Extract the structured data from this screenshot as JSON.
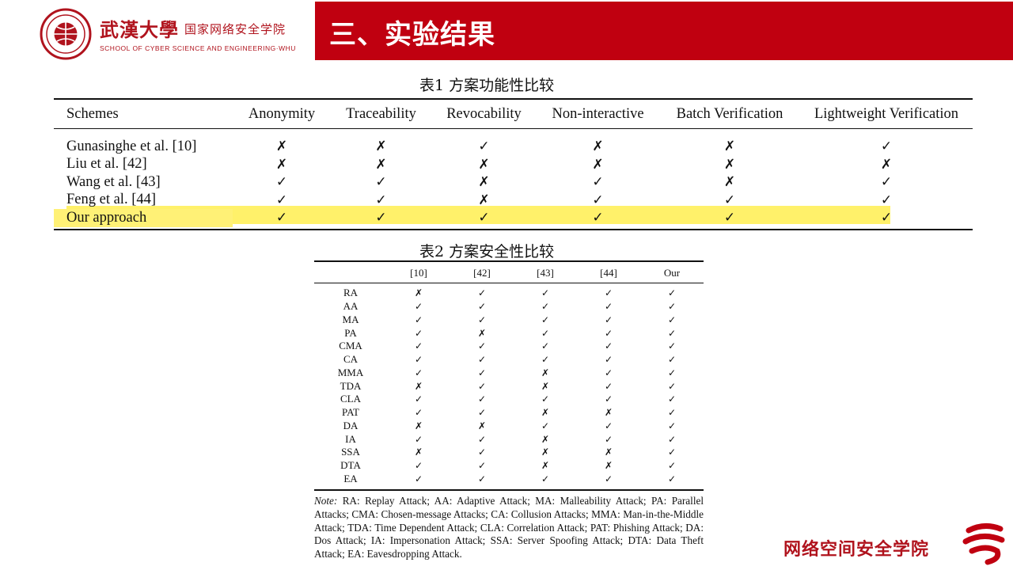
{
  "header": {
    "university_cn": "武漢大學",
    "school_cn": "国家网络安全学院",
    "school_en": "SCHOOL OF CYBER SCIENCE AND ENGINEERING·WHU",
    "section_title": "三、实验结果",
    "brand_color": "#c00010"
  },
  "table1": {
    "caption": "表1  方案功能性比较",
    "columns": [
      "Schemes",
      "Anonymity",
      "Traceability",
      "Revocability",
      "Non-interactive",
      "Batch Verification",
      "Lightweight Verification"
    ],
    "rows": [
      {
        "scheme": "Gunasinghe et al. [10]",
        "marks": [
          "✗",
          "✗",
          "✓",
          "✗",
          "✗",
          "✓"
        ]
      },
      {
        "scheme": "Liu et al. [42]",
        "marks": [
          "✗",
          "✗",
          "✗",
          "✗",
          "✗",
          "✗"
        ]
      },
      {
        "scheme": "Wang et al. [43]",
        "marks": [
          "✓",
          "✓",
          "✗",
          "✓",
          "✗",
          "✓"
        ]
      },
      {
        "scheme": "Feng et al. [44]",
        "marks": [
          "✓",
          "✓",
          "✗",
          "✓",
          "✓",
          "✓"
        ]
      },
      {
        "scheme": "Our approach",
        "marks": [
          "✓",
          "✓",
          "✓",
          "✓",
          "✓",
          "✓"
        ],
        "highlight": true
      }
    ],
    "highlight_color": "#fff16a"
  },
  "table2": {
    "caption": "表2  方案安全性比较",
    "columns": [
      "",
      "[10]",
      "[42]",
      "[43]",
      "[44]",
      "Our"
    ],
    "rows": [
      {
        "attack": "RA",
        "marks": [
          "✗",
          "✓",
          "✓",
          "✓",
          "✓"
        ]
      },
      {
        "attack": "AA",
        "marks": [
          "✓",
          "✓",
          "✓",
          "✓",
          "✓"
        ]
      },
      {
        "attack": "MA",
        "marks": [
          "✓",
          "✓",
          "✓",
          "✓",
          "✓"
        ]
      },
      {
        "attack": "PA",
        "marks": [
          "✓",
          "✗",
          "✓",
          "✓",
          "✓"
        ]
      },
      {
        "attack": "CMA",
        "marks": [
          "✓",
          "✓",
          "✓",
          "✓",
          "✓"
        ]
      },
      {
        "attack": "CA",
        "marks": [
          "✓",
          "✓",
          "✓",
          "✓",
          "✓"
        ]
      },
      {
        "attack": "MMA",
        "marks": [
          "✓",
          "✓",
          "✗",
          "✓",
          "✓"
        ]
      },
      {
        "attack": "TDA",
        "marks": [
          "✗",
          "✓",
          "✗",
          "✓",
          "✓"
        ]
      },
      {
        "attack": "CLA",
        "marks": [
          "✓",
          "✓",
          "✓",
          "✓",
          "✓"
        ]
      },
      {
        "attack": "PAT",
        "marks": [
          "✓",
          "✓",
          "✗",
          "✗",
          "✓"
        ]
      },
      {
        "attack": "DA",
        "marks": [
          "✗",
          "✗",
          "✓",
          "✓",
          "✓"
        ]
      },
      {
        "attack": "IA",
        "marks": [
          "✓",
          "✓",
          "✗",
          "✓",
          "✓"
        ]
      },
      {
        "attack": "SSA",
        "marks": [
          "✗",
          "✓",
          "✗",
          "✗",
          "✓"
        ]
      },
      {
        "attack": "DTA",
        "marks": [
          "✓",
          "✓",
          "✗",
          "✗",
          "✓"
        ]
      },
      {
        "attack": "EA",
        "marks": [
          "✓",
          "✓",
          "✓",
          "✓",
          "✓"
        ]
      }
    ],
    "note_label": "Note:",
    "note_text": "RA: Replay Attack; AA: Adaptive Attack; MA: Malleability Attack; PA: Parallel Attacks; CMA: Chosen-message Attacks; CA: Collusion Attacks; MMA: Man-in-the-Middle Attack; TDA: Time Dependent Attack; CLA: Correlation Attack; PAT: Phishing Attack; DA: Dos Attack; IA: Impersonation Attack; SSA: Server Spoofing Attack; DTA: Data Theft Attack; EA: Eavesdropping Attack."
  },
  "footer": {
    "school_cn": "网络空间安全学院"
  }
}
